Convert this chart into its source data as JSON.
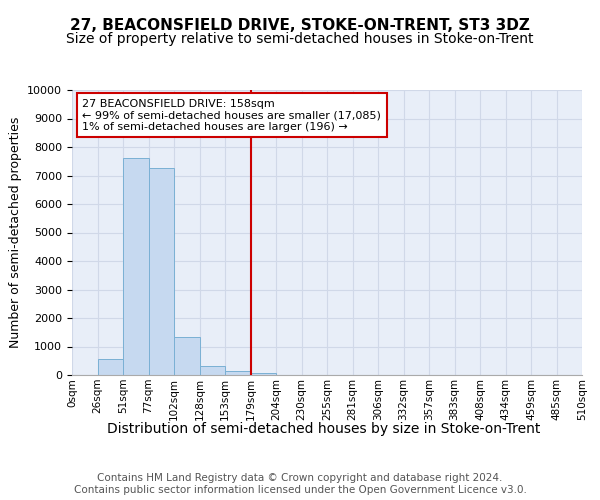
{
  "title": "27, BEACONSFIELD DRIVE, STOKE-ON-TRENT, ST3 3DZ",
  "subtitle": "Size of property relative to semi-detached houses in Stoke-on-Trent",
  "xlabel": "Distribution of semi-detached houses by size in Stoke-on-Trent",
  "ylabel": "Number of semi-detached properties",
  "bin_labels": [
    "0sqm",
    "26sqm",
    "51sqm",
    "77sqm",
    "102sqm",
    "128sqm",
    "153sqm",
    "179sqm",
    "204sqm",
    "230sqm",
    "255sqm",
    "281sqm",
    "306sqm",
    "332sqm",
    "357sqm",
    "383sqm",
    "408sqm",
    "434sqm",
    "459sqm",
    "485sqm",
    "510sqm"
  ],
  "bar_values": [
    0,
    570,
    7620,
    7270,
    1330,
    310,
    130,
    80,
    0,
    0,
    0,
    0,
    0,
    0,
    0,
    0,
    0,
    0,
    0,
    0
  ],
  "bar_color": "#c6d9f0",
  "bar_edge_color": "#7ab0d4",
  "vline_color": "#cc0000",
  "vline_x": 7,
  "annotation_text": "27 BEACONSFIELD DRIVE: 158sqm\n← 99% of semi-detached houses are smaller (17,085)\n1% of semi-detached houses are larger (196) →",
  "annotation_box_color": "#ffffff",
  "annotation_box_edge": "#cc0000",
  "ylim": [
    0,
    10000
  ],
  "yticks": [
    0,
    1000,
    2000,
    3000,
    4000,
    5000,
    6000,
    7000,
    8000,
    9000,
    10000
  ],
  "footer": "Contains HM Land Registry data © Crown copyright and database right 2024.\nContains public sector information licensed under the Open Government Licence v3.0.",
  "title_fontsize": 11,
  "subtitle_fontsize": 10,
  "xlabel_fontsize": 10,
  "ylabel_fontsize": 9,
  "footer_fontsize": 7.5,
  "grid_color": "#d0d8e8",
  "bg_color": "#e8eef8"
}
